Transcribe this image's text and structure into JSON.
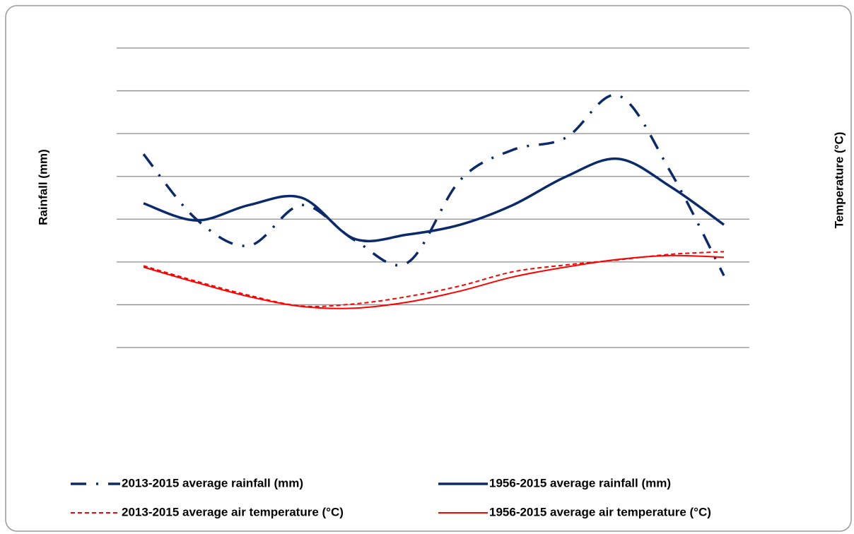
{
  "chart_data": {
    "type": "line",
    "y_label": "Rainfall (mm)",
    "y2_label": "Temperature (°C)",
    "categories": [
      null,
      null,
      null,
      null,
      null,
      null,
      null,
      null,
      null,
      null,
      null,
      null
    ],
    "ylim": [
      0,
      7
    ],
    "yticks": [
      0,
      1,
      2,
      3,
      4,
      5,
      6,
      7
    ],
    "y2lim": [
      0,
      7
    ],
    "y2ticks": [
      0,
      1,
      2,
      3,
      4,
      5,
      6,
      7
    ],
    "grid": true,
    "legend": "bottom",
    "series": [
      {
        "name": "2013-2015 average rainfall (mm)",
        "color": "#0b2a6b",
        "style": "dash-dot",
        "values": [
          4.52,
          3.0,
          2.38,
          3.33,
          2.51,
          1.98,
          3.91,
          4.62,
          4.9,
          5.89,
          4.08,
          1.68
        ]
      },
      {
        "name": "1956-2015 average rainfall (mm)",
        "color": "#0b2a6b",
        "style": "solid",
        "values": [
          3.37,
          2.97,
          3.33,
          3.5,
          2.54,
          2.64,
          2.87,
          3.33,
          3.99,
          4.41,
          3.75,
          2.87
        ]
      },
      {
        "name": "2013-2015 average air temperature (°C)",
        "color": "#ff0000",
        "style": "dashed",
        "axis": "y2",
        "values": [
          1.91,
          1.55,
          1.22,
          0.97,
          1.02,
          1.19,
          1.44,
          1.77,
          1.93,
          2.05,
          2.18,
          2.24
        ]
      },
      {
        "name": "1956-2015 average air temperature (°C)",
        "color": "#ff0000",
        "style": "solid",
        "axis": "y2",
        "values": [
          1.88,
          1.52,
          1.19,
          0.96,
          0.92,
          1.06,
          1.32,
          1.65,
          1.88,
          2.06,
          2.15,
          2.11
        ]
      }
    ]
  }
}
